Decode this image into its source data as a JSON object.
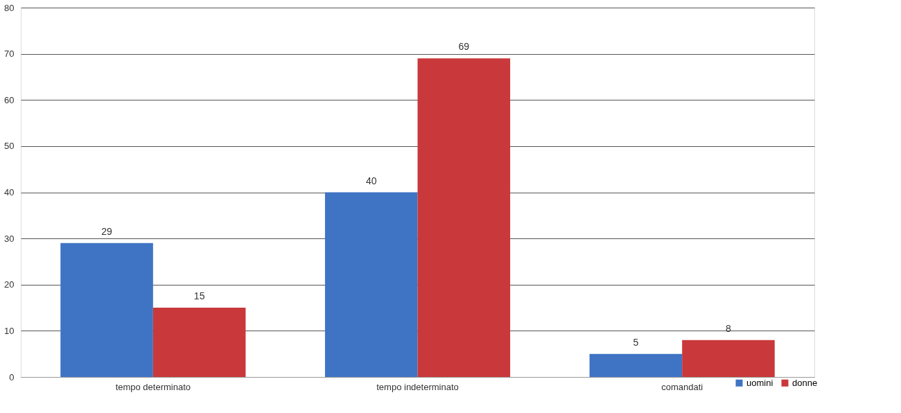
{
  "chart_data": {
    "type": "bar",
    "categories": [
      "tempo determinato",
      "tempo indeterminato",
      "comandati"
    ],
    "series": [
      {
        "name": "uomini",
        "color": "#3f74c4",
        "values": [
          29,
          40,
          5
        ]
      },
      {
        "name": "donne",
        "color": "#c9383a",
        "values": [
          15,
          69,
          8
        ]
      }
    ],
    "ylim": [
      0,
      80
    ],
    "yticks": [
      0,
      10,
      20,
      30,
      40,
      50,
      60,
      70,
      80
    ],
    "grid": "y",
    "legend": "bottom right",
    "data_labels": true
  }
}
